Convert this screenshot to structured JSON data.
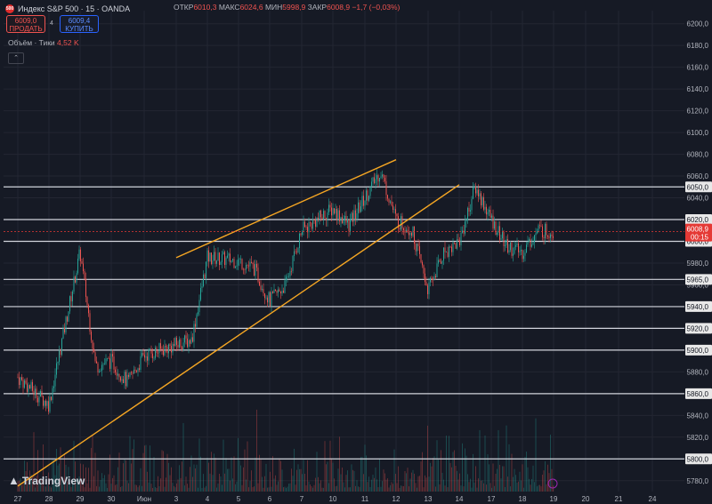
{
  "header": {
    "logo_text": "500",
    "symbol": "Индекс S&P 500 · 15 · OANDA",
    "open_label": "ОТКР",
    "open_value": "6010,3",
    "high_label": "МАКС",
    "high_value": "6024,6",
    "low_label": "МИН",
    "low_value": "5998,9",
    "close_label": "ЗАКР",
    "close_value": "6008,9",
    "change_value": "−1,7 (−0,03%)"
  },
  "trade": {
    "sell_price": "6009,0",
    "sell_label": "ПРОДАТЬ",
    "spread": "4",
    "buy_price": "6009,4",
    "buy_label": "КУПИТЬ"
  },
  "volume": {
    "label": "Объём · Тики",
    "value": "4,52 K"
  },
  "collapse_icon": "chevron-up-icon",
  "branding": "TradingView",
  "colors": {
    "up": "#26a69a",
    "down": "#ef5350",
    "trendline": "#f5a623",
    "level": "#d1d4dc",
    "price_tag": "#e53935",
    "background": "#161a25",
    "grid": "#232632"
  },
  "chart_data": {
    "type": "candlestick",
    "y_ticks": [
      "6200,0",
      "6180,0",
      "6160,0",
      "6140,0",
      "6120,0",
      "6100,0",
      "6080,0",
      "6060,0",
      "6040,0",
      "6020,0",
      "6000,0",
      "5980,0",
      "5960,0",
      "5940,0",
      "5920,0",
      "5900,0",
      "5880,0",
      "5860,0",
      "5840,0",
      "5820,0",
      "5800,0",
      "5780,0"
    ],
    "ylim": [
      5770,
      6212
    ],
    "x_ticks": [
      "27",
      "28",
      "29",
      "30",
      "Июн",
      "3",
      "4",
      "5",
      "6",
      "7",
      "10",
      "11",
      "12",
      "13",
      "14",
      "17",
      "18",
      "19",
      "20",
      "21",
      "24"
    ],
    "horizontal_levels": [
      {
        "value": 6050,
        "label": "6050,0"
      },
      {
        "value": 6020,
        "label": "6020,0"
      },
      {
        "value": 6000,
        "label": "6000,0"
      },
      {
        "value": 5965,
        "label": "5965,0"
      },
      {
        "value": 5940,
        "label": "5940,0"
      },
      {
        "value": 5920,
        "label": "5920,0"
      },
      {
        "value": 5900,
        "label": "5900,0"
      },
      {
        "value": 5860,
        "label": "5860,0"
      },
      {
        "value": 5800,
        "label": "5800,0"
      }
    ],
    "last_price": {
      "value": 6008.9,
      "label": "6008,9",
      "countdown": "00:15"
    },
    "trendlines": [
      {
        "from": [
          "27",
          5775
        ],
        "to": [
          "14",
          6052
        ]
      },
      {
        "from": [
          "3",
          5985
        ],
        "to": [
          "12",
          6075
        ]
      }
    ],
    "price_path": [
      [
        "27",
        5875
      ],
      [
        "28",
        5850
      ],
      [
        "28.5",
        5920
      ],
      [
        "29",
        5990
      ],
      [
        "29.5",
        5885
      ],
      [
        "30",
        5890
      ],
      [
        "30.5",
        5870
      ],
      [
        "Июн",
        5895
      ],
      [
        "3",
        5905
      ],
      [
        "3.5",
        5910
      ],
      [
        "4",
        5985
      ],
      [
        "5",
        5982
      ],
      [
        "5.5",
        5975
      ],
      [
        "6",
        5945
      ],
      [
        "6.5",
        5960
      ],
      [
        "7",
        6010
      ],
      [
        "10",
        6030
      ],
      [
        "10.5",
        6015
      ],
      [
        "11",
        6040
      ],
      [
        "11.5",
        6065
      ],
      [
        "12",
        6020
      ],
      [
        "12.5",
        6010
      ],
      [
        "13",
        5955
      ],
      [
        "13.5",
        5990
      ],
      [
        "14",
        6000
      ],
      [
        "14.5",
        6050
      ],
      [
        "17",
        6020
      ],
      [
        "17.5",
        5995
      ],
      [
        "18",
        5990
      ],
      [
        "18.5",
        6010
      ],
      [
        "19",
        6008.9
      ]
    ]
  }
}
